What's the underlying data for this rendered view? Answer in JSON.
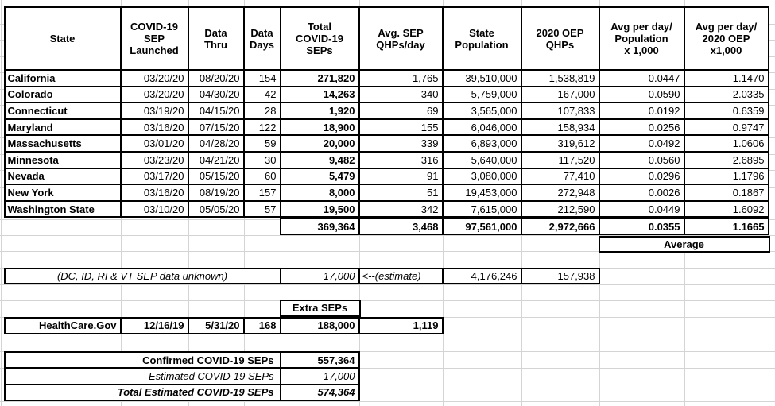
{
  "main_table": {
    "headers": [
      "State",
      "COVID-19\nSEP\nLaunched",
      "Data\nThru",
      "Data\nDays",
      "Total\nCOVID-19\nSEPs",
      "Avg. SEP\nQHPs/day",
      "State\nPopulation",
      "2020 OEP\nQHPs",
      "Avg per day/\nPopulation\nx 1,000",
      "Avg per day/\n2020 OEP\nx1,000"
    ],
    "rows": [
      {
        "state": "California",
        "launched": "03/20/20",
        "thru": "08/20/20",
        "days": "154",
        "seps": "271,820",
        "avg": "1,765",
        "pop": "39,510,000",
        "oep": "1,538,819",
        "ppop": "0.0447",
        "poep": "1.1470"
      },
      {
        "state": "Colorado",
        "launched": "03/20/20",
        "thru": "04/30/20",
        "days": "42",
        "seps": "14,263",
        "avg": "340",
        "pop": "5,759,000",
        "oep": "167,000",
        "ppop": "0.0590",
        "poep": "2.0335"
      },
      {
        "state": "Connecticut",
        "launched": "03/19/20",
        "thru": "04/15/20",
        "days": "28",
        "seps": "1,920",
        "avg": "69",
        "pop": "3,565,000",
        "oep": "107,833",
        "ppop": "0.0192",
        "poep": "0.6359"
      },
      {
        "state": "Maryland",
        "launched": "03/16/20",
        "thru": "07/15/20",
        "days": "122",
        "seps": "18,900",
        "avg": "155",
        "pop": "6,046,000",
        "oep": "158,934",
        "ppop": "0.0256",
        "poep": "0.9747"
      },
      {
        "state": "Massachusetts",
        "launched": "03/01/20",
        "thru": "04/28/20",
        "days": "59",
        "seps": "20,000",
        "avg": "339",
        "pop": "6,893,000",
        "oep": "319,612",
        "ppop": "0.0492",
        "poep": "1.0606"
      },
      {
        "state": "Minnesota",
        "launched": "03/23/20",
        "thru": "04/21/20",
        "days": "30",
        "seps": "9,482",
        "avg": "316",
        "pop": "5,640,000",
        "oep": "117,520",
        "ppop": "0.0560",
        "poep": "2.6895"
      },
      {
        "state": "Nevada",
        "launched": "03/17/20",
        "thru": "05/15/20",
        "days": "60",
        "seps": "5,479",
        "avg": "91",
        "pop": "3,080,000",
        "oep": "77,410",
        "ppop": "0.0296",
        "poep": "1.1796"
      },
      {
        "state": "New York",
        "launched": "03/16/20",
        "thru": "08/19/20",
        "days": "157",
        "seps": "8,000",
        "avg": "51",
        "pop": "19,453,000",
        "oep": "272,948",
        "ppop": "0.0026",
        "poep": "0.1867"
      },
      {
        "state": "Washington State",
        "launched": "03/10/20",
        "thru": "05/05/20",
        "days": "57",
        "seps": "19,500",
        "avg": "342",
        "pop": "7,615,000",
        "oep": "212,590",
        "ppop": "0.0449",
        "poep": "1.6092"
      }
    ],
    "totals": {
      "seps": "369,364",
      "avg": "3,468",
      "pop": "97,561,000",
      "oep": "2,972,666",
      "ppop": "0.0355",
      "poep": "1.1665"
    },
    "average_label": "Average"
  },
  "unknown_row": {
    "label": "(DC, ID, RI & VT SEP data unknown)",
    "seps": "17,000",
    "note": "<--(estimate)",
    "pop": "4,176,246",
    "oep": "157,938"
  },
  "extra_seps": {
    "header": "Extra SEPs",
    "source": "HealthCare.Gov",
    "launched": "12/16/19",
    "thru": "5/31/20",
    "days": "168",
    "seps": "188,000",
    "avg": "1,119"
  },
  "summary": {
    "confirmed_label": "Confirmed COVID-19 SEPs",
    "confirmed_value": "557,364",
    "estimated_label": "Estimated COVID-19 SEPs",
    "estimated_value": "17,000",
    "total_label": "Total Estimated COVID-19 SEPs",
    "total_value": "574,364"
  },
  "colors": {
    "grid": "#d4d4d4",
    "border": "#000000",
    "background": "#ffffff"
  }
}
